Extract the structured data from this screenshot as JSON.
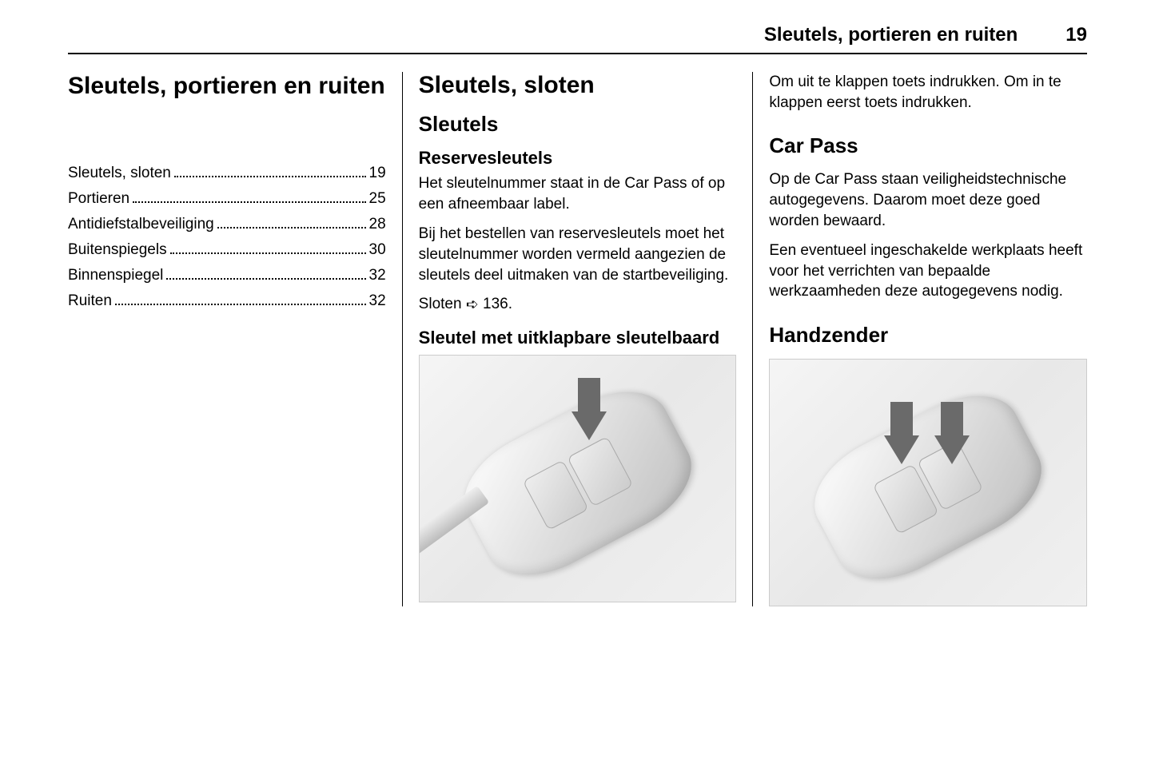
{
  "header": {
    "title": "Sleutels, portieren en ruiten",
    "page": "19"
  },
  "col1": {
    "chapter_title": "Sleutels, portieren en ruiten",
    "toc": [
      {
        "label": "Sleutels, sloten",
        "page": "19"
      },
      {
        "label": "Portieren",
        "page": "25"
      },
      {
        "label": "Antidiefstalbeveiliging",
        "page": "28"
      },
      {
        "label": "Buitenspiegels",
        "page": "30"
      },
      {
        "label": "Binnenspiegel",
        "page": "32"
      },
      {
        "label": "Ruiten",
        "page": "32"
      }
    ]
  },
  "col2": {
    "h1": "Sleutels, sloten",
    "h2": "Sleutels",
    "sect1_h3": "Reservesleutels",
    "sect1_p1": "Het sleutelnummer staat in de Car Pass of op een afneembaar label.",
    "sect1_p2": "Bij het bestellen van reservesleutels moet het sleutelnummer worden vermeld aangezien de sleutels deel uitmaken van de startbeveiliging.",
    "sect1_ref_prefix": "Sloten ",
    "sect1_ref_symbol": "➪",
    "sect1_ref_page": " 136.",
    "sect2_h3": "Sleutel met uitklapbare sleutelbaard"
  },
  "col3": {
    "p1": "Om uit te klappen toets indrukken. Om in te klappen eerst toets indrukken.",
    "carpass_h2": "Car Pass",
    "carpass_p1": "Op de Car Pass staan veiligheidstechnische autogegevens. Daarom moet deze goed worden bewaard.",
    "carpass_p2": "Een eventueel ingeschakelde werkplaats heeft voor het verrichten van bepaalde werkzaamheden deze autogegevens nodig.",
    "handzender_h2": "Handzender"
  },
  "figures": {
    "fig1_name": "key-fob-flip-blade",
    "fig2_name": "key-fob-remote-buttons",
    "arrow_color": "#6a6a6a"
  }
}
